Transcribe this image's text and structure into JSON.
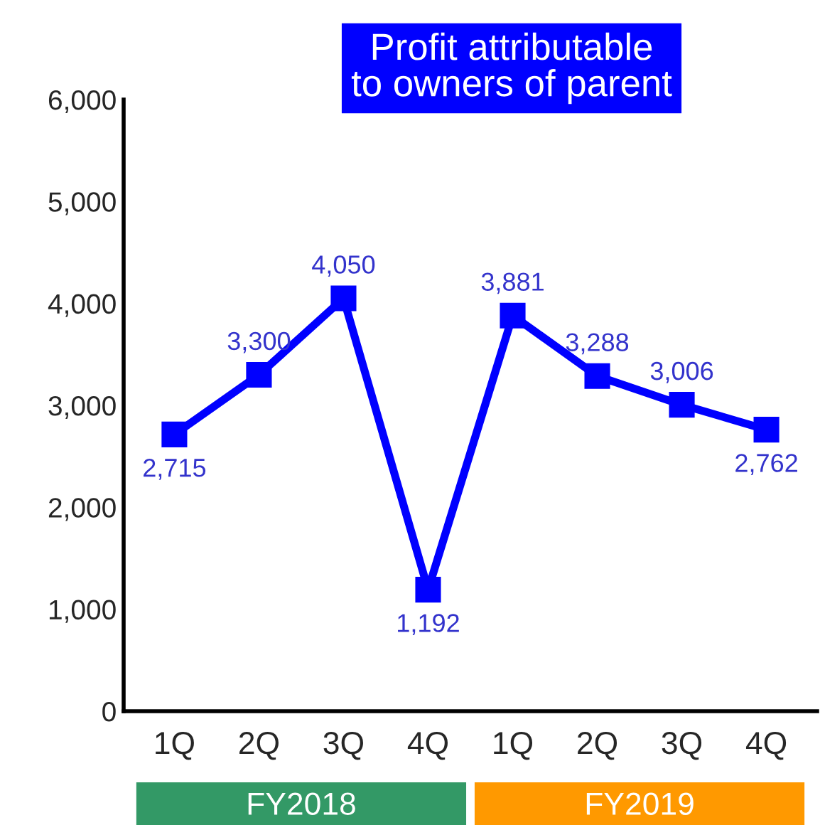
{
  "chart_data": {
    "type": "line",
    "title": "Profit attributable\nto owners of parent",
    "categories": [
      "1Q",
      "2Q",
      "3Q",
      "4Q",
      "1Q",
      "2Q",
      "3Q",
      "4Q"
    ],
    "series": [
      {
        "color": "#0000ff",
        "values": [
          2715,
          3300,
          4050,
          1192,
          3881,
          3288,
          3006,
          2762
        ]
      }
    ],
    "value_labels": [
      "2,715",
      "3,300",
      "4,050",
      "1,192",
      "3,881",
      "3,288",
      "3,006",
      "2,762"
    ],
    "ylim": [
      0,
      6000
    ],
    "yticks": [
      0,
      {
        "value": 1000,
        "label": "1,000"
      },
      {
        "value": 2000,
        "label": "2,000"
      },
      {
        "value": 3000,
        "label": "3,000"
      },
      {
        "value": 4000,
        "label": "4,000"
      },
      {
        "value": 5000,
        "label": "5,000"
      },
      {
        "value": 6000,
        "label": "6,000"
      }
    ],
    "grid": false,
    "legend": false,
    "marker": "square",
    "line_style": "solid",
    "annotations": [
      "FY2018",
      "FY2019"
    ]
  }
}
